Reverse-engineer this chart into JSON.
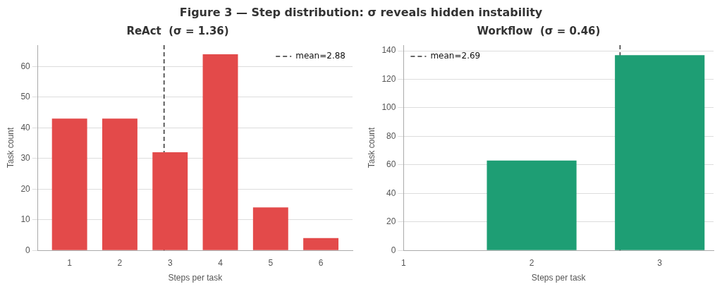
{
  "chart_data": [
    {
      "type": "bar",
      "title": "ReAct  (σ = 1.36)",
      "xlabel": "Steps per task",
      "ylabel": "Task count",
      "annotations": [
        "Figure 3 — Step distribution: σ reveals hidden instability"
      ],
      "x": [
        1,
        2,
        3,
        4,
        5,
        6
      ],
      "series": [
        {
          "color": "#e34a4a",
          "values": [
            43,
            43,
            32,
            64,
            14,
            4
          ]
        }
      ],
      "xlim": [
        0.37,
        6.63
      ],
      "xticks": [
        1,
        2,
        3,
        4,
        5,
        6
      ],
      "ylim": [
        0,
        67
      ],
      "yticks": [
        0,
        10,
        20,
        30,
        40,
        50,
        60
      ],
      "ref_lines": [
        {
          "axis": "x",
          "value": 2.88,
          "label": "mean=2.88",
          "color": "#333333",
          "line_style": "dashed"
        }
      ],
      "grid": "y",
      "legend": "top right"
    },
    {
      "type": "bar",
      "title": "Workflow  (σ = 0.46)",
      "xlabel": "Steps per task",
      "ylabel": "Task count",
      "x": [
        1,
        2,
        3
      ],
      "series": [
        {
          "color": "#1e9e74",
          "values": [
            0,
            63,
            137
          ]
        }
      ],
      "xlim": [
        1,
        3.42
      ],
      "xticks": [
        1,
        2,
        3
      ],
      "ylim": [
        0,
        144
      ],
      "yticks": [
        0,
        20,
        40,
        60,
        80,
        100,
        120,
        140
      ],
      "ref_lines": [
        {
          "axis": "x",
          "value": 2.69,
          "label": "mean=2.69",
          "color": "#333333",
          "line_style": "dashed"
        }
      ],
      "grid": "y",
      "legend": "top left"
    }
  ]
}
